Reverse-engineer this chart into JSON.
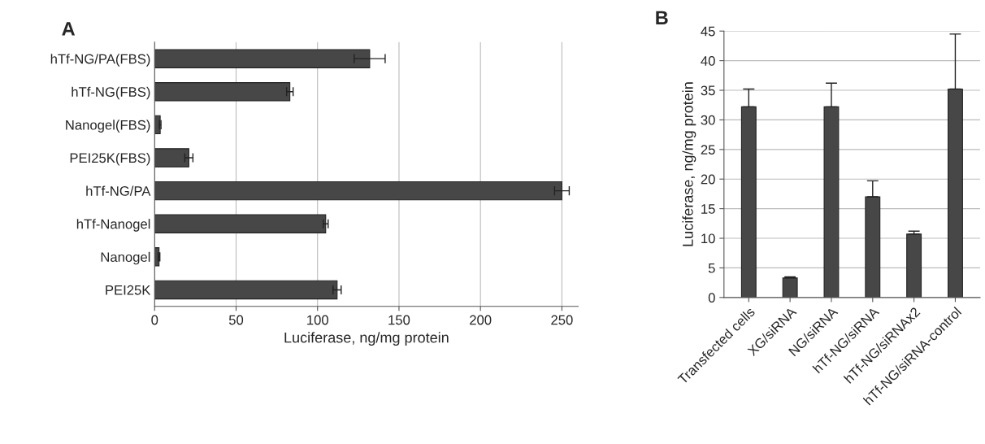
{
  "chart_data": [
    {
      "type": "bar",
      "title": "A",
      "orientation": "horizontal",
      "xlabel": "Luciferase, ng/mg protein",
      "categories": [
        "hTf-NG/PA(FBS)",
        "hTf-NG(FBS)",
        "Nanogel(FBS)",
        "PEI25K(FBS)",
        "hTf-NG/PA",
        "hTf-Nanogel",
        "Nanogel",
        "PEI25K"
      ],
      "values": [
        132,
        83,
        3.4,
        21,
        250,
        105,
        2.7,
        112
      ],
      "errors": [
        9.5,
        2,
        0.5,
        2.5,
        4.5,
        1.5,
        0.5,
        2.5
      ],
      "color": "#474747",
      "xlim": [
        0,
        260
      ],
      "xticks": [
        0,
        50,
        100,
        150,
        200,
        250
      ],
      "grid": "x"
    },
    {
      "type": "bar",
      "title": "B",
      "ylabel": "Luciferase, ng/mg protein",
      "categories": [
        "Transfected cells",
        "XG/siRNA",
        "NG/siRNA",
        "hTf-NG/siRNA",
        "hTf-NG/siRNAx2",
        "hTf-NG/siRNA-control"
      ],
      "values": [
        32.2,
        3.3,
        32.2,
        17,
        10.7,
        35.2
      ],
      "errors": [
        [
          32.2,
          35.2
        ],
        [
          3.3,
          3.5
        ],
        [
          32.2,
          36.2
        ],
        [
          17,
          19.7
        ],
        [
          10.7,
          11.2
        ],
        [
          35.2,
          44.5
        ]
      ],
      "color": "#474747",
      "ylim": [
        0,
        45
      ],
      "yticks": [
        0,
        5,
        10,
        15,
        20,
        25,
        30,
        35,
        40,
        45
      ],
      "grid": "y"
    }
  ]
}
